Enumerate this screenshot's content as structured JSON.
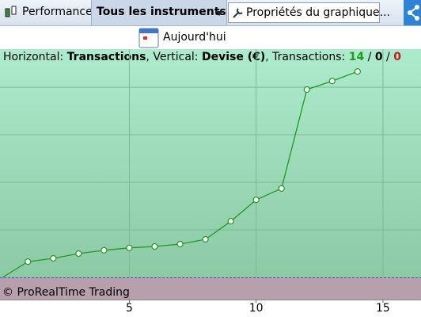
{
  "toolbar": {
    "performance": "Performance",
    "instruments": "Tous les instruments",
    "properties": "Propriétés du graphique..."
  },
  "date_button": "Aujourd'hui",
  "info": {
    "h_label": "Horizontal: ",
    "h_value": "Transactions",
    "v_label": ", Vertical: ",
    "v_value": "Devise (€)",
    "t_label": ", Transactions: ",
    "t_total": "14",
    "sep": " / ",
    "t_mid": "0",
    "t_last": "0"
  },
  "copyright": "© ProRealTime Trading",
  "chart_data": {
    "type": "line",
    "color": "#1f9a1f",
    "x": [
      0,
      1,
      2,
      3,
      4,
      5,
      6,
      7,
      8,
      9,
      10,
      11,
      12,
      13,
      14
    ],
    "values": [
      0,
      0.33,
      0.4,
      0.5,
      0.57,
      0.62,
      0.65,
      0.7,
      0.8,
      1.18,
      1.63,
      1.87,
      3.95,
      4.13,
      4.33
    ],
    "xlim": [
      -0.1,
      16.5
    ],
    "xticks": [
      5,
      10,
      15
    ],
    "ylim": [
      0,
      4.8
    ],
    "ygrid": [
      1,
      2,
      3,
      4
    ]
  }
}
